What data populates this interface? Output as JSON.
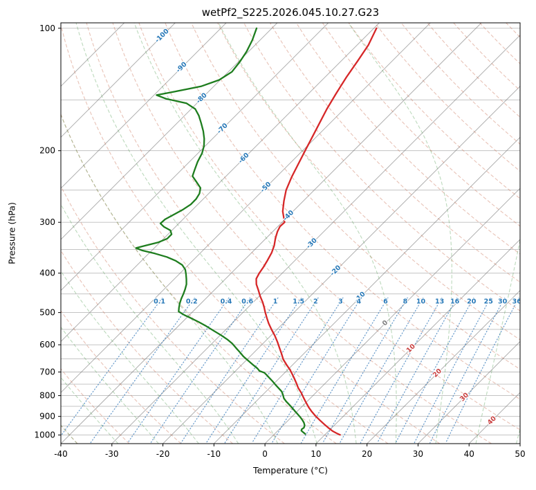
{
  "header": {
    "title": "wetPf2_S225.2026.045.10.27.G23"
  },
  "chart_data": {
    "type": "line",
    "variant": "skew-T log-p sounding",
    "title": "wetPf2_S225.2026.045.10.27.G23",
    "xlabel": "Temperature (°C)",
    "ylabel": "Pressure (hPa)",
    "xlim": [
      -40,
      50
    ],
    "p_top": 97,
    "p_bottom": 1050,
    "skew_deg": 45,
    "x_ticks": [
      -40,
      -30,
      -20,
      -10,
      0,
      10,
      20,
      30,
      40,
      50
    ],
    "p_ticks": [
      100,
      200,
      300,
      400,
      500,
      600,
      700,
      800,
      900,
      1000
    ],
    "grid_pressures_step": 50,
    "series": [
      {
        "name": "temperature",
        "color": "#d62728",
        "points_p_hPa_T_degC": [
          [
            100,
            -59.5
          ],
          [
            110,
            -57.8
          ],
          [
            120,
            -56.8
          ],
          [
            132,
            -55.8
          ],
          [
            145,
            -54.6
          ],
          [
            158,
            -53.4
          ],
          [
            172,
            -52
          ],
          [
            186,
            -50.7
          ],
          [
            200,
            -49.5
          ],
          [
            216,
            -48.2
          ],
          [
            232,
            -47
          ],
          [
            250,
            -45.5
          ],
          [
            266,
            -43.8
          ],
          [
            282,
            -42
          ],
          [
            292,
            -40.6
          ],
          [
            300,
            -39.5
          ],
          [
            307,
            -39.6
          ],
          [
            316,
            -39.1
          ],
          [
            328,
            -38.2
          ],
          [
            342,
            -37
          ],
          [
            356,
            -36.1
          ],
          [
            372,
            -35.4
          ],
          [
            386,
            -34.9
          ],
          [
            400,
            -34.5
          ],
          [
            413,
            -34
          ],
          [
            426,
            -32.9
          ],
          [
            440,
            -31.4
          ],
          [
            456,
            -29.8
          ],
          [
            472,
            -28.1
          ],
          [
            486,
            -26.8
          ],
          [
            500,
            -25.6
          ],
          [
            516,
            -24.2
          ],
          [
            532,
            -22.8
          ],
          [
            550,
            -21.1
          ],
          [
            570,
            -19.2
          ],
          [
            590,
            -17.5
          ],
          [
            612,
            -15.8
          ],
          [
            632,
            -14.3
          ],
          [
            652,
            -12.9
          ],
          [
            672,
            -11.2
          ],
          [
            692,
            -9.5
          ],
          [
            700,
            -8.9
          ],
          [
            722,
            -7.3
          ],
          [
            744,
            -5.8
          ],
          [
            766,
            -4.4
          ],
          [
            788,
            -2.8
          ],
          [
            810,
            -1.4
          ],
          [
            832,
            0
          ],
          [
            854,
            1.4
          ],
          [
            876,
            2.9
          ],
          [
            898,
            4.5
          ],
          [
            920,
            6.2
          ],
          [
            942,
            7.9
          ],
          [
            962,
            9.5
          ],
          [
            978,
            10.8
          ],
          [
            990,
            12
          ],
          [
            999,
            13
          ]
        ]
      },
      {
        "name": "dewpoint",
        "color": "#1e7d1e",
        "points_p_hPa_T_degC": [
          [
            100,
            -83
          ],
          [
            107,
            -81.5
          ],
          [
            114,
            -80.4
          ],
          [
            121,
            -79.7
          ],
          [
            128,
            -79.3
          ],
          [
            134,
            -80.2
          ],
          [
            139,
            -82.5
          ],
          [
            143,
            -86.5
          ],
          [
            146,
            -89.5
          ],
          [
            149,
            -87
          ],
          [
            153,
            -82
          ],
          [
            158,
            -79.2
          ],
          [
            164,
            -77.2
          ],
          [
            171,
            -75.3
          ],
          [
            179,
            -73.3
          ],
          [
            187,
            -71.6
          ],
          [
            195,
            -70.2
          ],
          [
            203,
            -69.2
          ],
          [
            213,
            -68.4
          ],
          [
            223,
            -67.4
          ],
          [
            231,
            -66.6
          ],
          [
            239,
            -64.6
          ],
          [
            247,
            -62.7
          ],
          [
            255,
            -61.8
          ],
          [
            263,
            -61.4
          ],
          [
            271,
            -61.4
          ],
          [
            279,
            -61.9
          ],
          [
            287,
            -62.7
          ],
          [
            295,
            -63.5
          ],
          [
            302,
            -63.6
          ],
          [
            308,
            -62.2
          ],
          [
            314,
            -60.3
          ],
          [
            321,
            -59.3
          ],
          [
            329,
            -59.3
          ],
          [
            336,
            -60.3
          ],
          [
            342,
            -62.2
          ],
          [
            347,
            -63.6
          ],
          [
            352,
            -61.8
          ],
          [
            358,
            -58.8
          ],
          [
            365,
            -55.8
          ],
          [
            373,
            -53.3
          ],
          [
            382,
            -51.2
          ],
          [
            392,
            -49.7
          ],
          [
            402,
            -48.7
          ],
          [
            414,
            -47.6
          ],
          [
            426,
            -46.6
          ],
          [
            438,
            -45.9
          ],
          [
            450,
            -45.3
          ],
          [
            462,
            -44.8
          ],
          [
            474,
            -44.2
          ],
          [
            486,
            -43.5
          ],
          [
            497,
            -42.8
          ],
          [
            507,
            -41
          ],
          [
            517,
            -38.9
          ],
          [
            528,
            -36.7
          ],
          [
            540,
            -34.5
          ],
          [
            554,
            -32.2
          ],
          [
            568,
            -29.9
          ],
          [
            582,
            -27.8
          ],
          [
            596,
            -26
          ],
          [
            611,
            -24.4
          ],
          [
            626,
            -22.8
          ],
          [
            641,
            -21.3
          ],
          [
            656,
            -19.6
          ],
          [
            671,
            -17.9
          ],
          [
            686,
            -16.2
          ],
          [
            696,
            -15.3
          ],
          [
            703,
            -14
          ],
          [
            712,
            -13.1
          ],
          [
            724,
            -12
          ],
          [
            738,
            -10.7
          ],
          [
            752,
            -9.5
          ],
          [
            767,
            -8.2
          ],
          [
            782,
            -6.9
          ],
          [
            797,
            -6
          ],
          [
            812,
            -5.2
          ],
          [
            827,
            -4.1
          ],
          [
            842,
            -2.9
          ],
          [
            857,
            -1.7
          ],
          [
            872,
            -0.6
          ],
          [
            887,
            0.5
          ],
          [
            902,
            1.6
          ],
          [
            917,
            2.6
          ],
          [
            932,
            3.5
          ],
          [
            947,
            4.2
          ],
          [
            959,
            4.5
          ],
          [
            968,
            4.4
          ],
          [
            976,
            4.6
          ],
          [
            985,
            5.3
          ],
          [
            994,
            6
          ]
        ]
      }
    ],
    "background": {
      "isotherms": {
        "min": -110,
        "max": 50,
        "step": 10,
        "color": "rgba(110,110,110,0.55)"
      },
      "isotherm_labels": {
        "values": [
          -100,
          -90,
          -80,
          -70,
          -60,
          -50,
          -40,
          -30,
          -20,
          -10,
          0,
          10,
          20,
          30,
          40
        ],
        "neg_color": "#2879b8",
        "zero_color": "#808080",
        "pos_color": "#c94040"
      },
      "dry_adiabats": {
        "theta_min_C": -40,
        "theta_max_C": 200,
        "step_C": 10,
        "color": "rgba(200,110,80,0.42)"
      },
      "moist_adiabats": {
        "start_temps_C": [
          -40,
          -32,
          -24,
          -16,
          -8,
          0,
          8,
          16,
          24,
          32,
          40,
          48
        ],
        "color": "rgba(80,155,80,0.38)"
      },
      "mixing_ratio_lines": {
        "values_g_kg": [
          0.1,
          0.2,
          0.4,
          0.6,
          1,
          1.5,
          2,
          3,
          4,
          6,
          8,
          10,
          13,
          16,
          20,
          25,
          30,
          36
        ],
        "label_pressure_hPa": 470,
        "p_range": [
          460,
          1045
        ],
        "color": "rgba(49,119,184,0.75)",
        "label_color": "#2879b8"
      }
    }
  }
}
